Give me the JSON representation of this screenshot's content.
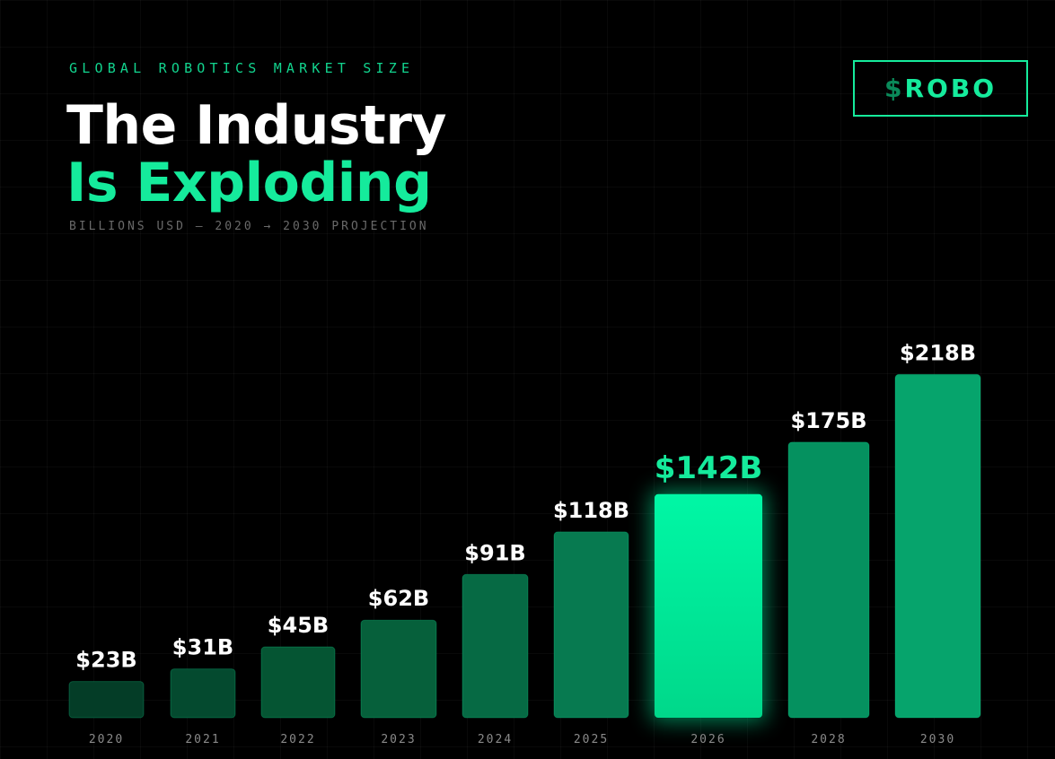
{
  "header": {
    "eyebrow": "GLOBAL ROBOTICS MARKET SIZE",
    "title_line1": "The Industry",
    "title_line2": "Is Exploding",
    "subtitle": "BILLIONS USD — 2020 → 2030 PROJECTION"
  },
  "ticker": {
    "symbol": "$",
    "name": "ROBO",
    "accent_color": "#15eb9c"
  },
  "colors": {
    "background": "#000000",
    "accent": "#15eb9c",
    "highlight_bar": "#00f0a0"
  },
  "chart_data": {
    "type": "bar",
    "title": "The Industry Is Exploding",
    "xlabel": "",
    "ylabel": "Billions USD",
    "categories": [
      "2020",
      "2021",
      "2022",
      "2023",
      "2024",
      "2025",
      "2026",
      "2028",
      "2030"
    ],
    "values": [
      23,
      31,
      45,
      62,
      91,
      118,
      142,
      175,
      218
    ],
    "value_labels": [
      "$23B",
      "$31B",
      "$45B",
      "$62B",
      "$91B",
      "$118B",
      "$142B",
      "$175B",
      "$218B"
    ],
    "highlight_index": 6,
    "ylim": [
      0,
      230
    ],
    "grid": false,
    "legend": "none"
  }
}
